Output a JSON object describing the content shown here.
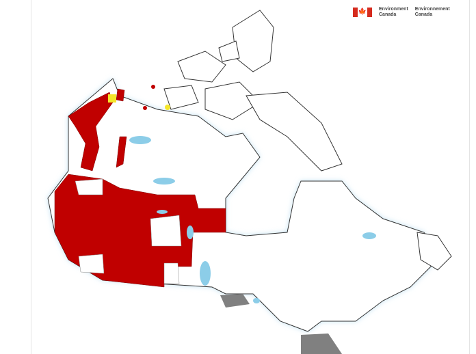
{
  "logo": {
    "en_line1": "Environment",
    "en_line2": "Canada",
    "fr_line1": "Environnement",
    "fr_line2": "Canada"
  },
  "colors": {
    "warning": "#c00000",
    "advisory": "#f5e62a",
    "statement": "#808080",
    "land": "#ffffff",
    "water": "#8ccde8",
    "glow": "#cfe7f4"
  }
}
